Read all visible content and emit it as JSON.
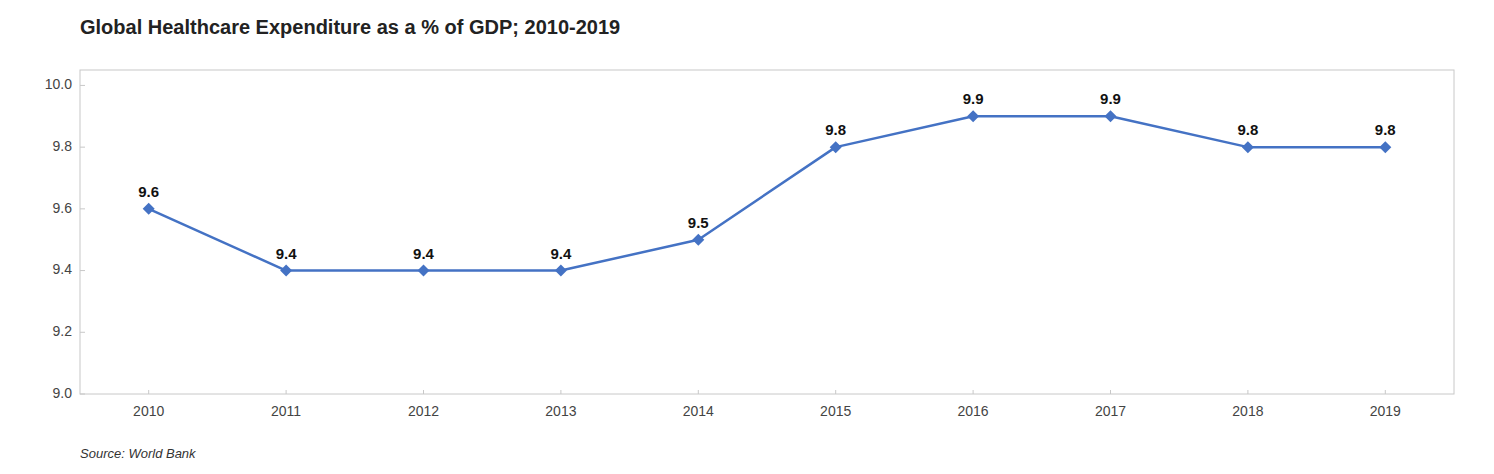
{
  "chart_data": {
    "type": "line",
    "title": "Global Healthcare Expenditure as a % of GDP; 2010-2019",
    "source": "Source: World Bank",
    "x": [
      2010,
      2011,
      2012,
      2013,
      2014,
      2015,
      2016,
      2017,
      2018,
      2019
    ],
    "values": [
      9.6,
      9.4,
      9.4,
      9.4,
      9.5,
      9.8,
      9.9,
      9.9,
      9.8,
      9.8
    ],
    "xlim": [
      2009.5,
      2019.5
    ],
    "xticks": [
      2010,
      2011,
      2012,
      2013,
      2014,
      2015,
      2016,
      2017,
      2018,
      2019
    ],
    "ylim": [
      9.0,
      10.05
    ],
    "yticks": [
      {
        "value": 9.0,
        "label": "9.0"
      },
      9.2,
      9.4,
      9.6,
      9.8,
      {
        "value": 10.0,
        "label": "10.0"
      }
    ],
    "color": "#4472C4",
    "marker": "diamond",
    "data_labels": true,
    "grid": false
  }
}
